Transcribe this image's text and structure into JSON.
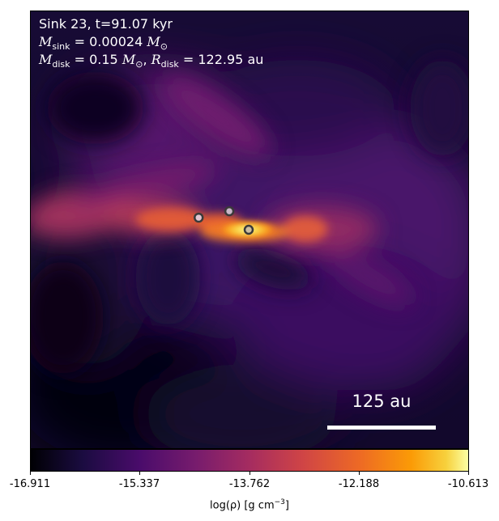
{
  "annotations": {
    "sink_line": "Sink 23, t=91.07 kyr",
    "m_sink_symbol": "M",
    "m_sink_sub": "sink",
    "m_sink_value": " = 0.00024 ",
    "m_sink_unit": "M",
    "m_sink_unit_sub": "⊙",
    "m_disk_symbol": "M",
    "m_disk_sub": "disk",
    "m_disk_value": " = 0.15 ",
    "m_disk_unit": "M",
    "m_disk_unit_sub": "⊙",
    "r_disk_separator": ", ",
    "r_disk_symbol": "R",
    "r_disk_sub": "disk",
    "r_disk_value": " = 122.95 au"
  },
  "scale_bar": {
    "label": "125 au",
    "length_au": 125
  },
  "colorbar": {
    "ticks": [
      "-16.911",
      "-15.337",
      "-13.762",
      "-12.188",
      "-10.613"
    ],
    "label_prefix": "log(ρ) [g cm",
    "label_exponent": "−3",
    "label_suffix": "]",
    "colormap": "inferno"
  },
  "sinks": [
    {
      "name": "sink-particle-primary",
      "fill": "#cdbfa0"
    },
    {
      "name": "sink-particle-secondary",
      "fill": "#c9b6c9"
    },
    {
      "name": "sink-particle-tertiary",
      "fill": "#e1c5d2"
    }
  ],
  "colors": {
    "background_dark": "#0f0726",
    "disk_hot": "#fcffa4",
    "text": "#ffffff"
  }
}
